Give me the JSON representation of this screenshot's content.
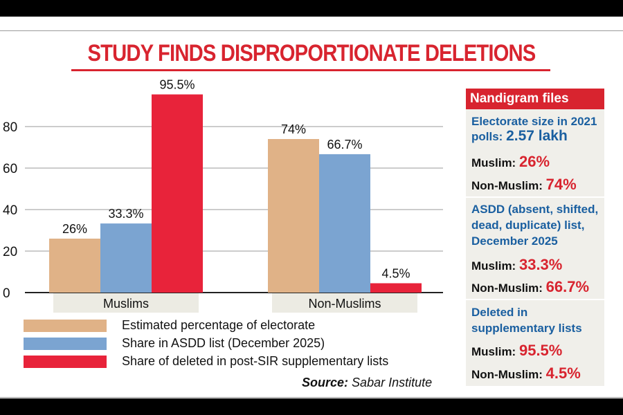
{
  "title": "STUDY FINDS DISPROPORTIONATE DELETIONS",
  "chart_data": {
    "type": "bar",
    "title": "STUDY FINDS DISPROPORTIONATE DELETIONS",
    "categories": [
      "Muslims",
      "Non-Muslims"
    ],
    "series": [
      {
        "name": "Estimated percentage of electorate",
        "values": [
          26,
          74
        ],
        "labels": [
          "26%",
          "74%"
        ],
        "color": "#e0b287"
      },
      {
        "name": "Share in ASDD list (December 2025)",
        "values": [
          33.3,
          66.7
        ],
        "labels": [
          "33.3%",
          "66.7%"
        ],
        "color": "#7ba4d1"
      },
      {
        "name": "Share of deleted in post-SIR supplementary lists",
        "values": [
          95.5,
          4.5
        ],
        "labels": [
          "95.5%",
          "4.5%"
        ],
        "color": "#e8233a"
      }
    ],
    "yticks": [
      0,
      20,
      40,
      60,
      80
    ],
    "ytick_labels": [
      "0",
      "20",
      "40",
      "60",
      "80"
    ],
    "ylim": [
      0,
      100
    ],
    "grid": true,
    "xlabel": "",
    "ylabel": ""
  },
  "legend": [
    {
      "label": "Estimated percentage of electorate",
      "color": "#e0b287"
    },
    {
      "label": "Share in ASDD list (December 2025)",
      "color": "#7ba4d1"
    },
    {
      "label": "Share of deleted in post-SIR supplementary lists",
      "color": "#e8233a"
    }
  ],
  "source": {
    "prefix": "Source:",
    "text": "Sabar Institute"
  },
  "sidebar": {
    "heading": "Nandigram files",
    "electorate_line1": "Electorate size in 2021",
    "electorate_line2": "polls:",
    "electorate_value": "2.57 lakh",
    "e_muslim_label": "Muslim:",
    "e_muslim_value": "26%",
    "e_nonmuslim_label": "Non-Muslim:",
    "e_nonmuslim_value": "74%",
    "asdd_line1": "ASDD (absent, shifted,",
    "asdd_line2": "dead, duplicate) list,",
    "asdd_line3": "December 2025",
    "a_muslim_label": "Muslim:",
    "a_muslim_value": "33.3%",
    "a_nonmuslim_label": "Non-Muslim:",
    "a_nonmuslim_value": "66.7%",
    "deleted_line1": "Deleted in",
    "deleted_line2": "supplementary lists",
    "d_muslim_label": "Muslim:",
    "d_muslim_value": "95.5%",
    "d_nonmuslim_label": "Non-Muslim:",
    "d_nonmuslim_value": "4.5%"
  }
}
